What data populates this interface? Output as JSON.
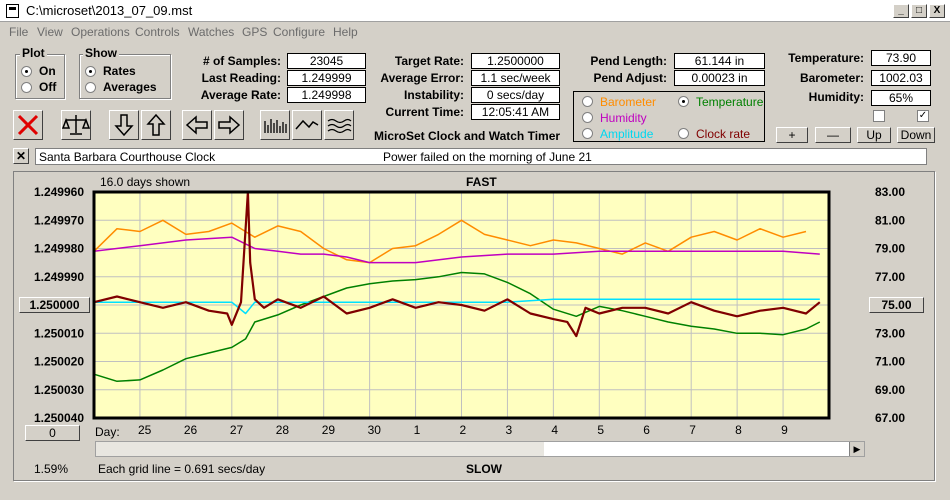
{
  "window": {
    "title": "C:\\microset\\2013_07_09.mst",
    "min": "_",
    "max": "□",
    "close": "X"
  },
  "menu": [
    "File",
    "View",
    "Operations",
    "Controls",
    "Watches",
    "GPS",
    "Configure",
    "Help"
  ],
  "plot": {
    "label": "Plot",
    "on": "On",
    "off": "Off",
    "selected": "On"
  },
  "show": {
    "label": "Show",
    "rates": "Rates",
    "averages": "Averages",
    "selected": "Rates"
  },
  "stats": {
    "samples_label": "# of Samples:",
    "samples": "23045",
    "last_label": "Last Reading:",
    "last": "1.249999",
    "avg_label": "Average Rate:",
    "avg": "1.249998",
    "target_label": "Target Rate:",
    "target": "1.2500000",
    "error_label": "Average Error:",
    "error": "1.1 sec/week",
    "instab_label": "Instability:",
    "instab": "0 secs/day",
    "time_label": "Current Time:",
    "time": "12:05:41 AM",
    "pend_len_label": "Pend Length:",
    "pend_len": "61.144 in",
    "pend_adj_label": "Pend Adjust:",
    "pend_adj": "0.00023 in",
    "temp_label": "Temperature:",
    "temp": "73.90",
    "baro_label": "Barometer:",
    "baro": "1002.03",
    "hum_label": "Humidity:",
    "hum": "65%"
  },
  "app_name": "MicroSet Clock and Watch Timer",
  "series_select": {
    "barometer": "Barometer",
    "temperature": "Temperature",
    "humidity": "Humidity",
    "amplitude": "Amplitude",
    "clock_rate": "Clock rate",
    "selected": "Temperature"
  },
  "env_buttons": {
    "plus": "+",
    "minus": "—",
    "up": "Up",
    "down": "Down"
  },
  "clock_name": "Santa Barbara Courthouse Clock",
  "note": "Power failed on the morning of June 21",
  "chart": {
    "days_shown": "16.0 days shown",
    "fast": "FAST",
    "slow": "SLOW",
    "left_button": "1.250000",
    "right_button": "75.00",
    "bottom_button": "0",
    "day_label": "Day:",
    "pct": "1.59%",
    "grid_note": "Each grid line = 0.691 secs/day"
  },
  "colors": {
    "plot_bg": "#ffffc0",
    "barometer": "#ff8c00",
    "temperature": "#008000",
    "humidity": "#c000c0",
    "amplitude": "#00e0ff",
    "rate": "#800000",
    "close_red": "#e00000"
  },
  "chart_data": {
    "type": "line",
    "title": "",
    "x_categories": [
      "25",
      "26",
      "27",
      "28",
      "29",
      "30",
      "1",
      "2",
      "3",
      "4",
      "5",
      "6",
      "7",
      "8",
      "9"
    ],
    "y_left": {
      "ticks": [
        "1.249960",
        "1.249970",
        "1.249980",
        "1.249990",
        "1.250000",
        "1.250010",
        "1.250020",
        "1.250030",
        "1.250040"
      ],
      "range": [
        1.24996,
        1.25004
      ]
    },
    "y_right": {
      "ticks": [
        "83.00",
        "81.00",
        "79.00",
        "77.00",
        "75.00",
        "73.00",
        "71.00",
        "69.00",
        "67.00"
      ],
      "range": [
        67,
        83
      ]
    },
    "grid": true,
    "series": [
      {
        "name": "Barometer",
        "axis": "left",
        "x": [
          24.0,
          24.5,
          25.0,
          25.5,
          26.0,
          26.5,
          27.0,
          27.5,
          28.0,
          28.5,
          29.0,
          29.5,
          30.0,
          30.5,
          31.0,
          31.5,
          32.0,
          32.5,
          33.0,
          33.5,
          34.0,
          34.5,
          35.0,
          35.5,
          36.0,
          36.5,
          37.0,
          37.5,
          38.0,
          38.5,
          39.0,
          39.5
        ],
        "y": [
          1.249981,
          1.249973,
          1.249974,
          1.24997,
          1.249975,
          1.249974,
          1.249971,
          1.249976,
          1.249972,
          1.249974,
          1.24998,
          1.249984,
          1.249985,
          1.24998,
          1.249979,
          1.249975,
          1.24997,
          1.249975,
          1.249977,
          1.249979,
          1.249977,
          1.249978,
          1.24998,
          1.249982,
          1.249978,
          1.249981,
          1.249976,
          1.249974,
          1.249977,
          1.249973,
          1.249976,
          1.249974
        ]
      },
      {
        "name": "Temperature",
        "axis": "right",
        "x": [
          24.0,
          24.5,
          25.0,
          25.5,
          26.0,
          26.5,
          27.0,
          27.3,
          27.5,
          28.0,
          28.5,
          29.0,
          29.5,
          30.0,
          30.5,
          31.0,
          31.5,
          32.0,
          32.5,
          33.0,
          33.5,
          34.0,
          34.5,
          35.0,
          35.5,
          36.0,
          36.5,
          37.0,
          37.5,
          38.0,
          38.5,
          39.0,
          39.5,
          39.8
        ],
        "y": [
          70.1,
          69.6,
          69.7,
          70.4,
          71.2,
          71.6,
          72.0,
          72.6,
          73.8,
          74.3,
          75.0,
          75.6,
          76.2,
          76.5,
          76.7,
          76.8,
          77.0,
          77.3,
          77.2,
          76.6,
          75.8,
          74.7,
          74.2,
          74.9,
          74.6,
          74.2,
          73.8,
          73.5,
          73.3,
          73.0,
          73.0,
          72.9,
          73.3,
          73.8
        ]
      },
      {
        "name": "Humidity",
        "axis": "left",
        "x": [
          24.0,
          25.0,
          26.0,
          27.0,
          27.5,
          28.0,
          28.5,
          29.0,
          29.5,
          30.0,
          31.0,
          32.0,
          33.0,
          34.0,
          35.0,
          36.0,
          37.0,
          38.0,
          39.0,
          39.8
        ],
        "y": [
          1.249981,
          1.249979,
          1.249977,
          1.249976,
          1.24998,
          1.249981,
          1.249982,
          1.249982,
          1.249983,
          1.249985,
          1.249985,
          1.249983,
          1.249982,
          1.249982,
          1.249981,
          1.249981,
          1.249981,
          1.249981,
          1.249981,
          1.249982
        ]
      },
      {
        "name": "Amplitude",
        "axis": "left",
        "x": [
          24.0,
          25.0,
          26.0,
          27.0,
          27.3,
          27.5,
          28.0,
          29.0,
          30.0,
          31.0,
          32.0,
          33.0,
          34.0,
          35.0,
          36.0,
          37.0,
          38.0,
          39.0,
          39.8
        ],
        "y": [
          1.249999,
          1.249999,
          1.249999,
          1.249999,
          1.250003,
          1.249999,
          1.249999,
          1.249999,
          1.249999,
          1.249999,
          1.249999,
          1.249999,
          1.249998,
          1.249998,
          1.249998,
          1.249998,
          1.249998,
          1.249998,
          1.249998
        ]
      },
      {
        "name": "Clock rate",
        "axis": "left",
        "x": [
          24.0,
          24.5,
          25.0,
          25.5,
          26.0,
          26.5,
          26.9,
          27.0,
          27.2,
          27.35,
          27.4,
          27.5,
          27.7,
          28.0,
          28.5,
          29.0,
          29.5,
          30.0,
          30.5,
          31.0,
          31.5,
          32.0,
          32.5,
          33.0,
          33.5,
          34.0,
          34.3,
          34.5,
          34.7,
          35.0,
          35.5,
          36.0,
          36.5,
          37.0,
          37.5,
          38.0,
          38.5,
          39.0,
          39.5,
          39.8
        ],
        "y": [
          1.249999,
          1.249997,
          1.249999,
          1.250001,
          1.249999,
          1.250002,
          1.250003,
          1.250007,
          1.249999,
          1.24996,
          1.249985,
          1.249998,
          1.250001,
          1.249998,
          1.250001,
          1.249997,
          1.250003,
          1.250001,
          1.249998,
          1.250001,
          1.249999,
          1.25,
          1.250002,
          1.249998,
          1.250003,
          1.250005,
          1.250006,
          1.250011,
          1.250001,
          1.250003,
          1.250001,
          1.250001,
          1.250003,
          1.249999,
          1.250002,
          1.250004,
          1.250002,
          1.250001,
          1.250003,
          1.249999
        ]
      }
    ]
  }
}
